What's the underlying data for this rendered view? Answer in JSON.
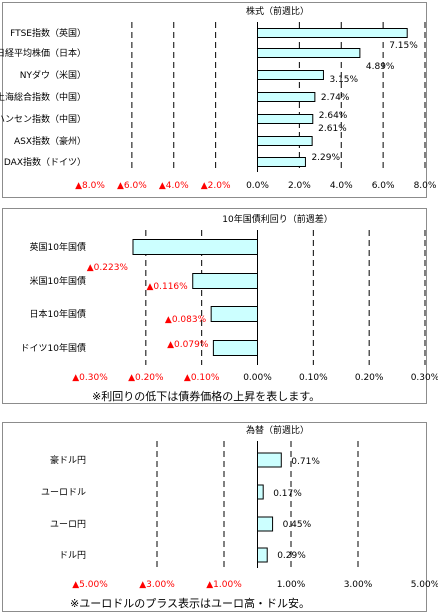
{
  "colors": {
    "bar_fill": "#ccffff",
    "bar_stroke": "#000000",
    "negative_tick": "#ff0000",
    "positive_tick": "#000000",
    "grid": "#000000"
  },
  "chart_data": [
    {
      "type": "bar",
      "orientation": "horizontal",
      "title": "株式（前週比）",
      "categories": [
        "FTSE指数（英国）",
        "日経平均株価（日本）",
        "NYダウ（米国）",
        "上海総合指数（中国）",
        "香港ハンセン指数（中国）",
        "ASX指数（豪州）",
        "DAX指数（ドイツ）"
      ],
      "values": [
        7.15,
        4.89,
        3.15,
        2.74,
        2.64,
        2.61,
        2.29
      ],
      "value_labels": [
        "7.15%",
        "4.89%",
        "3.15%",
        "2.74%",
        "2.64%",
        "2.61%",
        "2.29%"
      ],
      "xlim": [
        -8,
        8
      ],
      "ticks": [
        -8,
        -6,
        -4,
        -2,
        0,
        2,
        4,
        6,
        8
      ],
      "tick_labels": [
        "▲8.0%",
        "▲6.0%",
        "▲4.0%",
        "▲2.0%",
        "0.0%",
        "2.0%",
        "4.0%",
        "6.0%",
        "8.0%"
      ],
      "grid": "vertical dashed"
    },
    {
      "type": "bar",
      "orientation": "horizontal",
      "title": "10年国債利回り（前週差）",
      "categories": [
        "英国10年国債",
        "米国10年国債",
        "日本10年国債",
        "ドイツ10年国債"
      ],
      "values": [
        -0.223,
        -0.116,
        -0.083,
        -0.079
      ],
      "value_labels": [
        "▲0.223%",
        "▲0.116%",
        "▲0.083%",
        "▲0.079%"
      ],
      "xlim": [
        -0.3,
        0.3
      ],
      "ticks": [
        -0.3,
        -0.2,
        -0.1,
        0,
        0.1,
        0.2,
        0.3
      ],
      "tick_labels": [
        "▲0.30%",
        "▲0.20%",
        "▲0.10%",
        "0.00%",
        "0.10%",
        "0.20%",
        "0.30%"
      ],
      "grid": "vertical dashed",
      "note": "※利回りの低下は債券価格の上昇を表します。"
    },
    {
      "type": "bar",
      "orientation": "horizontal",
      "title": "為替（前週比）",
      "categories": [
        "豪ドル円",
        "ユーロドル",
        "ユーロ円",
        "ドル円"
      ],
      "values": [
        0.71,
        0.17,
        0.45,
        0.29
      ],
      "value_labels": [
        "0.71%",
        "0.17%",
        "0.45%",
        "0.29%"
      ],
      "xlim": [
        -5,
        5
      ],
      "ticks": [
        -5,
        -3,
        -1,
        1,
        3,
        5
      ],
      "tick_labels": [
        "▲5.00%",
        "▲3.00%",
        "▲1.00%",
        "1.00%",
        "3.00%",
        "5.00%"
      ],
      "grid": "vertical dashed",
      "note": "※ユーロドルのプラス表示はユーロ高・ドル安。"
    }
  ]
}
